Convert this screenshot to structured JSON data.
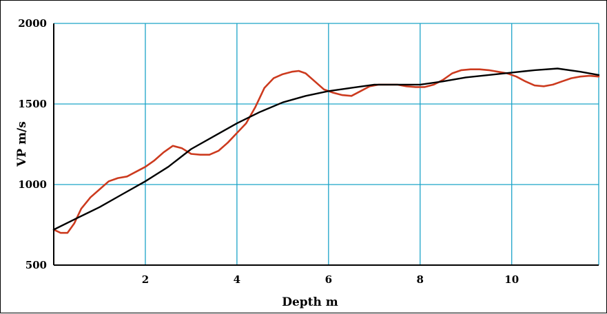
{
  "chart_data": {
    "type": "line",
    "xlabel": "Depth m",
    "ylabel": "VP m/s",
    "xlim": [
      0,
      11.9
    ],
    "ylim": [
      500,
      2000
    ],
    "x_ticks": [
      2,
      4,
      6,
      8,
      10
    ],
    "y_ticks": [
      500,
      1000,
      1500,
      2000
    ],
    "grid": true,
    "colors": {
      "grid": "#1aa3c8",
      "series_red": "#cc3a1e",
      "series_black": "#000000",
      "axis": "#000000"
    },
    "series": [
      {
        "color": "#cc3a1e",
        "x": [
          0.0,
          0.15,
          0.3,
          0.45,
          0.6,
          0.8,
          1.0,
          1.2,
          1.4,
          1.6,
          1.8,
          2.0,
          2.2,
          2.4,
          2.6,
          2.8,
          3.0,
          3.2,
          3.4,
          3.6,
          3.8,
          4.0,
          4.2,
          4.4,
          4.6,
          4.8,
          5.0,
          5.2,
          5.35,
          5.5,
          5.7,
          5.9,
          6.1,
          6.3,
          6.5,
          6.7,
          6.9,
          7.1,
          7.3,
          7.5,
          7.7,
          7.9,
          8.1,
          8.3,
          8.5,
          8.7,
          8.9,
          9.1,
          9.3,
          9.5,
          9.7,
          9.9,
          10.1,
          10.3,
          10.5,
          10.7,
          10.9,
          11.1,
          11.3,
          11.5,
          11.7,
          11.9
        ],
        "y": [
          720,
          700,
          700,
          760,
          850,
          920,
          970,
          1020,
          1040,
          1050,
          1080,
          1110,
          1150,
          1200,
          1240,
          1225,
          1190,
          1185,
          1185,
          1210,
          1260,
          1320,
          1380,
          1480,
          1600,
          1660,
          1685,
          1700,
          1705,
          1690,
          1640,
          1590,
          1570,
          1555,
          1550,
          1580,
          1610,
          1620,
          1620,
          1620,
          1610,
          1605,
          1605,
          1620,
          1650,
          1690,
          1710,
          1715,
          1715,
          1710,
          1700,
          1690,
          1670,
          1640,
          1615,
          1610,
          1620,
          1640,
          1660,
          1670,
          1675,
          1670
        ]
      },
      {
        "color": "#000000",
        "x": [
          0.0,
          0.5,
          1.0,
          1.5,
          2.0,
          2.5,
          3.0,
          3.5,
          4.0,
          4.5,
          5.0,
          5.5,
          6.0,
          6.5,
          7.0,
          7.5,
          8.0,
          8.5,
          9.0,
          9.5,
          10.0,
          10.5,
          11.0,
          11.5,
          11.9
        ],
        "y": [
          720,
          790,
          860,
          940,
          1020,
          1110,
          1220,
          1300,
          1380,
          1450,
          1510,
          1550,
          1580,
          1600,
          1620,
          1620,
          1620,
          1640,
          1665,
          1680,
          1695,
          1710,
          1720,
          1700,
          1680
        ]
      }
    ]
  }
}
